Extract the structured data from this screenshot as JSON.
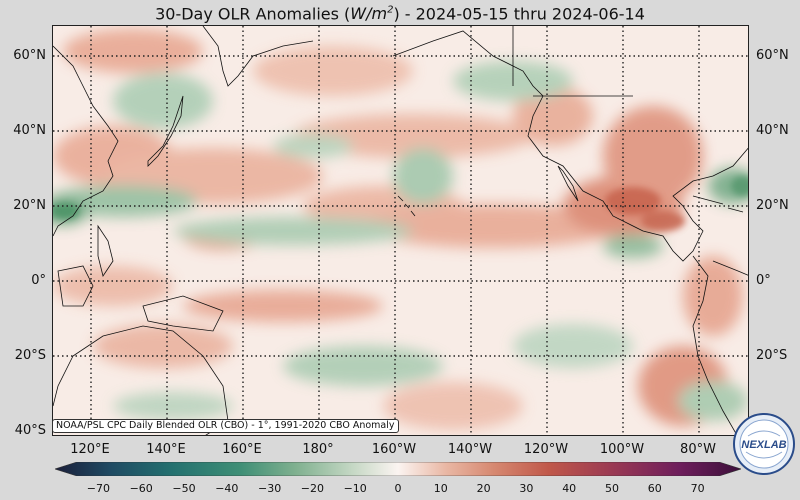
{
  "title": {
    "prefix": "30-Day OLR Anomalies (",
    "unit_main": "W/m",
    "unit_exp": "2",
    "suffix": ") - 2024-05-15 thru 2024-06-14"
  },
  "map": {
    "lat_labels": [
      "60°N",
      "40°N",
      "20°N",
      "0°",
      "20°S",
      "40°S"
    ],
    "lon_labels": [
      "120°E",
      "140°E",
      "160°E",
      "180°",
      "160°W",
      "140°W",
      "120°W",
      "100°W",
      "80°W"
    ],
    "source_note": "NOAA/PSL CPC Daily Blended OLR (CBO) - 1°, 1991-2020 CBO Anomaly",
    "colors": {
      "positive": "#c4553f",
      "negative": "#3f8c5f",
      "neutral": "#fbf1ec",
      "gridline": "#222222",
      "coastline": "#111111"
    }
  },
  "colorbar": {
    "ticks": [
      "−70",
      "−60",
      "−50",
      "−40",
      "−30",
      "−20",
      "−10",
      "0",
      "10",
      "20",
      "30",
      "40",
      "50",
      "60",
      "70"
    ],
    "tick_values": [
      -70,
      -60,
      -50,
      -40,
      -30,
      -20,
      -10,
      0,
      10,
      20,
      30,
      40,
      50,
      60,
      70
    ],
    "min": -75,
    "max": 75,
    "colors": [
      "#1b1f3a",
      "#1f4a63",
      "#23706f",
      "#3f8f76",
      "#7fb08f",
      "#c2d6c2",
      "#fbf4f1",
      "#e9b7a4",
      "#d68870",
      "#c0584a",
      "#9b3a53",
      "#6e1e5c",
      "#3c0f3a"
    ]
  },
  "logo": {
    "text": "NEXLAB"
  }
}
